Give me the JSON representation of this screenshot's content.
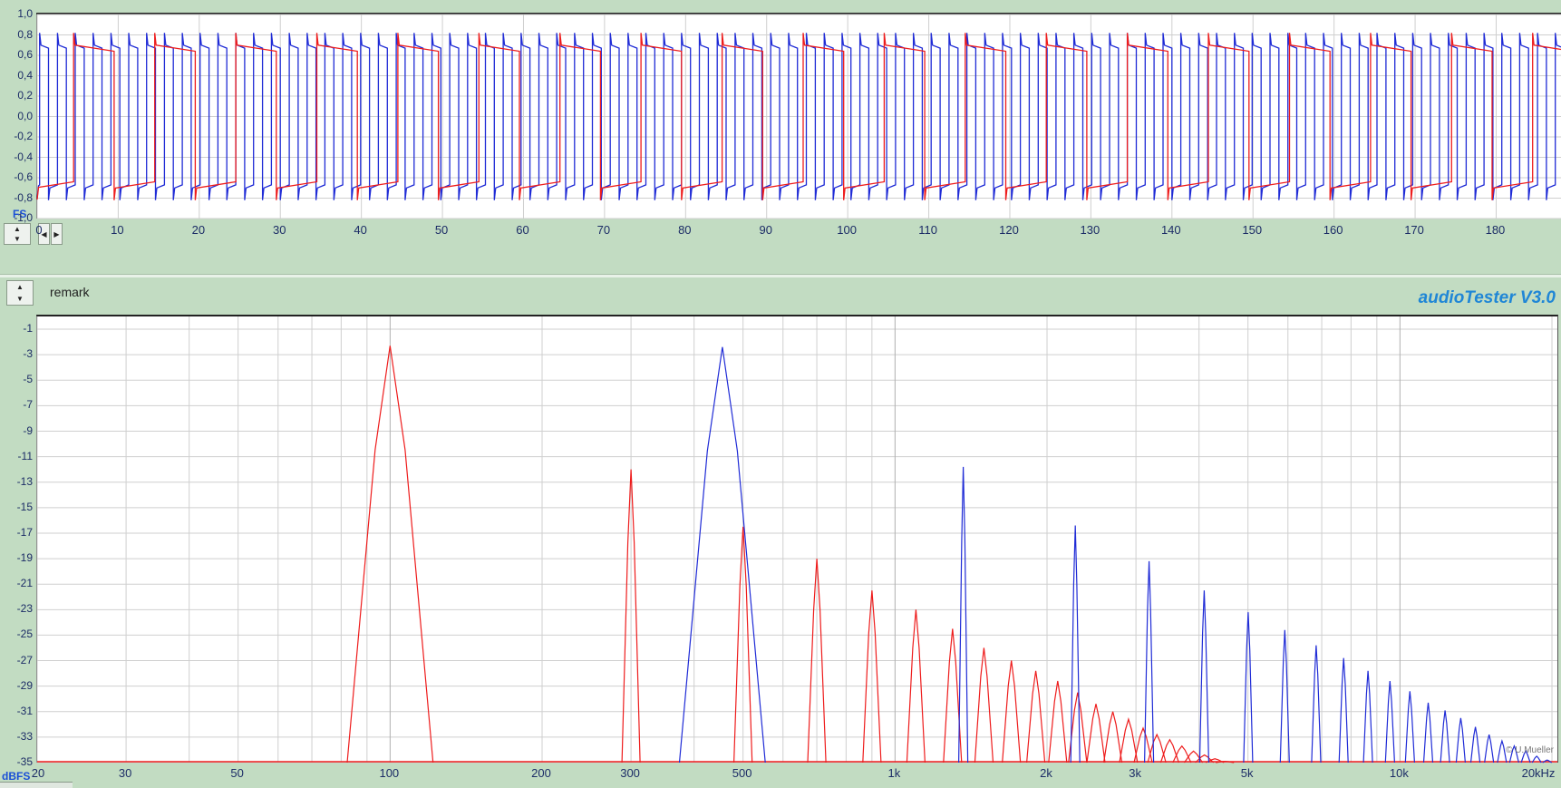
{
  "colors": {
    "ch1": "#ee1c1c",
    "ch2": "#1f2bd6",
    "grid": "#cfcfcf",
    "background": "#c2dcc2",
    "brand": "#1f86d6"
  },
  "toolbar": {
    "spin_up": "▲",
    "spin_down": "▼",
    "arrow_left": "◀",
    "arrow_right": "▶",
    "remark": "remark",
    "brand": "audioTester  V3.0"
  },
  "copyright": "© U.Mueller",
  "chart_data": [
    {
      "type": "line",
      "name": "scope",
      "x_unit": "FS",
      "xlim": [
        0,
        188
      ],
      "ylim": [
        -1.0,
        1.0
      ],
      "x_ticks": [
        0,
        10,
        20,
        30,
        40,
        50,
        60,
        70,
        80,
        90,
        100,
        110,
        120,
        130,
        140,
        150,
        160,
        170,
        180
      ],
      "x_tick_labels": [
        "0",
        "10",
        "20",
        "30",
        "40",
        "50",
        "60",
        "70",
        "80",
        "90",
        "100",
        "110",
        "120",
        "130",
        "140",
        "150",
        "160",
        "170",
        "180"
      ],
      "y_ticks": [
        1.0,
        0.8,
        0.6,
        0.4,
        0.2,
        0.0,
        -0.2,
        -0.4,
        -0.6,
        -0.8,
        -1.0
      ],
      "y_tick_labels": [
        "1,0",
        "0,8",
        "0,6",
        "0,4",
        "0,2",
        "0,0",
        "-0,2",
        "-0,4",
        "-0,6",
        "-0,8",
        "-1,0"
      ],
      "grid": true,
      "series": [
        {
          "color": "red",
          "waveform": "square",
          "period": 10,
          "phase": 4.5,
          "amplitude_high": 0.7,
          "amplitude_low": -0.7,
          "sag": 0.06
        },
        {
          "color": "blue",
          "waveform": "square",
          "period": 2.2,
          "phase": 0.3,
          "amplitude_high": 0.7,
          "amplitude_low": -0.7,
          "sag": 0.03
        }
      ]
    },
    {
      "type": "line",
      "name": "spectrum",
      "x_scale": "log",
      "x_unit": "",
      "y_unit": "dBFS",
      "xlim": [
        20,
        20500
      ],
      "ylim": [
        -35,
        0
      ],
      "x_ticks": [
        20,
        30,
        50,
        100,
        200,
        300,
        500,
        1000,
        2000,
        3000,
        5000,
        10000,
        20000
      ],
      "x_tick_labels": [
        "20",
        "30",
        "50",
        "100",
        "200",
        "300",
        "500",
        "1k",
        "2k",
        "3k",
        "5k",
        "10k",
        "20kHz"
      ],
      "y_ticks": [
        -1,
        -3,
        -5,
        -7,
        -9,
        -11,
        -13,
        -15,
        -17,
        -19,
        -21,
        -23,
        -25,
        -27,
        -29,
        -31,
        -33,
        -35
      ],
      "y_tick_labels": [
        "-1",
        "-3",
        "-5",
        "-7",
        "-9",
        "-11",
        "-13",
        "-15",
        "-17",
        "-19",
        "-21",
        "-23",
        "-25",
        "-27",
        "-29",
        "-31",
        "-33",
        "-35"
      ],
      "grid": true,
      "series": [
        {
          "color": "red",
          "peaks": [
            [
              100,
              -2.3
            ],
            [
              300,
              -12
            ],
            [
              500,
              -16.5
            ],
            [
              700,
              -19
            ],
            [
              900,
              -21.5
            ],
            [
              1100,
              -23
            ],
            [
              1300,
              -24.5
            ],
            [
              1500,
              -26
            ],
            [
              1700,
              -27
            ],
            [
              1900,
              -27.8
            ],
            [
              2100,
              -28.6
            ],
            [
              2300,
              -29.5
            ],
            [
              2500,
              -30.4
            ],
            [
              2700,
              -31
            ],
            [
              2900,
              -31.6
            ],
            [
              3100,
              -32.3
            ],
            [
              3300,
              -32.8
            ],
            [
              3500,
              -33.2
            ],
            [
              3700,
              -33.7
            ],
            [
              3900,
              -34.1
            ],
            [
              4100,
              -34.4
            ],
            [
              4300,
              -34.7
            ],
            [
              4500,
              -34.9
            ]
          ]
        },
        {
          "color": "blue",
          "peaks": [
            [
              455,
              -2.4
            ],
            [
              1365,
              -11.8
            ],
            [
              2275,
              -16.4
            ],
            [
              3185,
              -19.2
            ],
            [
              4095,
              -21.5
            ],
            [
              5005,
              -23.2
            ],
            [
              5915,
              -24.6
            ],
            [
              6825,
              -25.8
            ],
            [
              7735,
              -26.8
            ],
            [
              8645,
              -27.8
            ],
            [
              9555,
              -28.6
            ],
            [
              10465,
              -29.4
            ],
            [
              11375,
              -30.3
            ],
            [
              12285,
              -30.9
            ],
            [
              13195,
              -31.5
            ],
            [
              14105,
              -32.2
            ],
            [
              15015,
              -32.8
            ],
            [
              15925,
              -33.3
            ],
            [
              16835,
              -33.7
            ],
            [
              17745,
              -34.1
            ],
            [
              18655,
              -34.5
            ],
            [
              19565,
              -34.8
            ]
          ]
        }
      ]
    }
  ]
}
